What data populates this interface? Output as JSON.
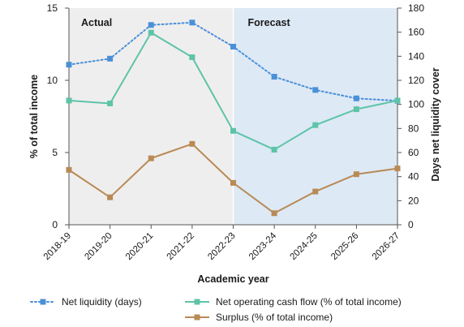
{
  "chart_data": {
    "type": "line",
    "categories": [
      "2018-19",
      "2019-20",
      "2020-21",
      "2021-22",
      "2022-23",
      "2023-24",
      "2024-25",
      "2025-26",
      "2026-27"
    ],
    "xlabel": "Academic year",
    "ylabel_left": "% of total income",
    "ylabel_right": "Days net liquidity cover",
    "ylim_left": [
      0,
      15
    ],
    "ylim_right": [
      0,
      180
    ],
    "yticks_left": [
      0,
      5,
      10,
      15
    ],
    "yticks_right": [
      0,
      20,
      40,
      60,
      80,
      100,
      120,
      140,
      160,
      180
    ],
    "regions": [
      {
        "label": "Actual",
        "from": "2018-19",
        "to": "2022-23",
        "color": "#efeeee"
      },
      {
        "label": "Forecast",
        "from": "2022-23",
        "to": "2026-27",
        "color": "#dde9f5"
      }
    ],
    "series": [
      {
        "name": "Net liquidity (days)",
        "axis": "right",
        "style": "dotted",
        "color": "#4a90d9",
        "values": [
          133,
          138,
          166,
          168,
          148,
          123,
          112,
          105,
          103
        ]
      },
      {
        "name": "Net operating cash flow (% of total income)",
        "axis": "left",
        "style": "solid",
        "color": "#5ec4a8",
        "values": [
          8.6,
          8.4,
          13.3,
          11.6,
          6.5,
          5.2,
          6.9,
          8.0,
          8.6
        ]
      },
      {
        "name": "Surplus (% of total income)",
        "axis": "left",
        "style": "solid",
        "color": "#b88a55",
        "values": [
          3.8,
          1.9,
          4.6,
          5.6,
          2.9,
          0.8,
          2.3,
          3.5,
          3.9
        ]
      }
    ],
    "legend_position": "bottom"
  }
}
